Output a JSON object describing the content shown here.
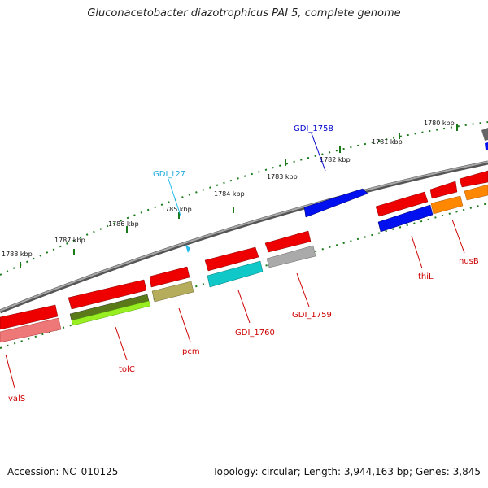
{
  "title": "Gluconacetobacter diazotrophicus PAI 5, complete genome",
  "footer": {
    "accession": "Accession: NC_010125",
    "summary": "Topology: circular; Length: 3,944,163 bp; Genes: 3,845"
  },
  "ruler": {
    "ticks": [
      {
        "label": "1780 kbp"
      },
      {
        "label": "1781 kbp"
      },
      {
        "label": "1782 kbp"
      },
      {
        "label": "1783 kbp"
      },
      {
        "label": "1784 kbp"
      },
      {
        "label": "1785 kbp"
      },
      {
        "label": "1786 kbp"
      },
      {
        "label": "1787 kbp"
      },
      {
        "label": "1788 kbp"
      }
    ]
  },
  "genes": [
    {
      "name": "GDI_1758",
      "color": "#0000cc"
    },
    {
      "name": "GDI_t27",
      "color": "#22bbee"
    },
    {
      "name": "thiL",
      "color": "#cc0000"
    },
    {
      "name": "nusB",
      "color": "#cc0000"
    },
    {
      "name": "GDI_1759",
      "color": "#cc0000"
    },
    {
      "name": "GDI_1760",
      "color": "#cc0000"
    },
    {
      "name": "pcm",
      "color": "#cc0000"
    },
    {
      "name": "tolC",
      "color": "#cc0000"
    },
    {
      "name": "valS",
      "color": "#cc0000"
    }
  ],
  "colors": {
    "backbone": "#8c8c8c",
    "tick": "#1a7a1a",
    "cds_forward": "#ee0000",
    "cds_blue": "#0010ee",
    "cds_cyan": "#10c8c8",
    "cds_gray": "#aaaaaa",
    "cds_orange": "#ff8800",
    "cds_olive": "#b5ad5c",
    "cds_lime": "#99ee22",
    "cds_pink": "#ee7777",
    "cds_darkgreen": "#5a7a1a",
    "cds_darkgray": "#666666"
  }
}
